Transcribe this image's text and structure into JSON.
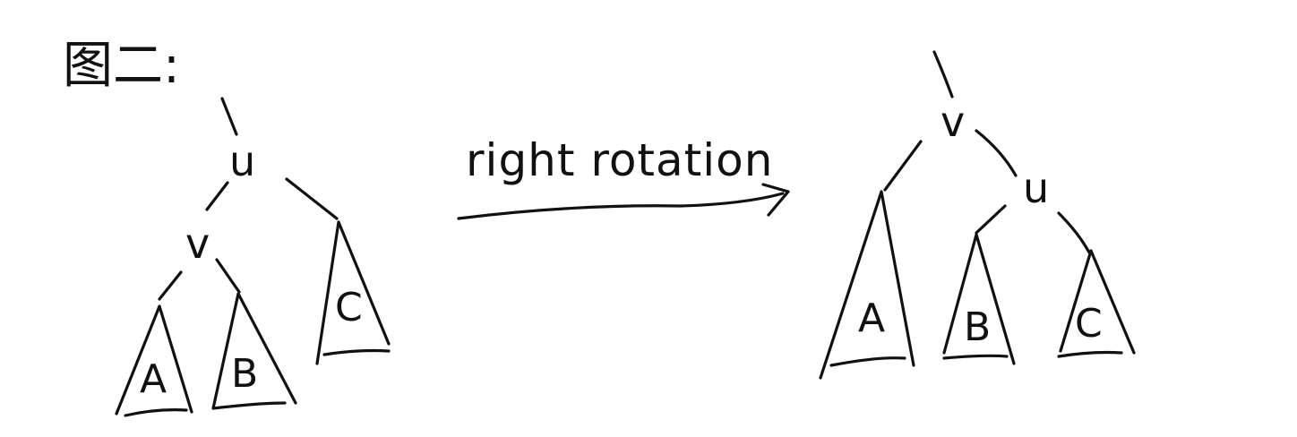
{
  "figure_label": "图二:",
  "operation_label": "right rotation",
  "before_tree": {
    "root": "u",
    "left_child": "v",
    "right_subtree": "C",
    "left_child_subtrees": [
      "A",
      "B"
    ]
  },
  "after_tree": {
    "root": "v",
    "left_subtree": "A",
    "right_child": "u",
    "right_child_subtrees": [
      "B",
      "C"
    ]
  },
  "ink_color": "#111111",
  "background_color": "#ffffff"
}
